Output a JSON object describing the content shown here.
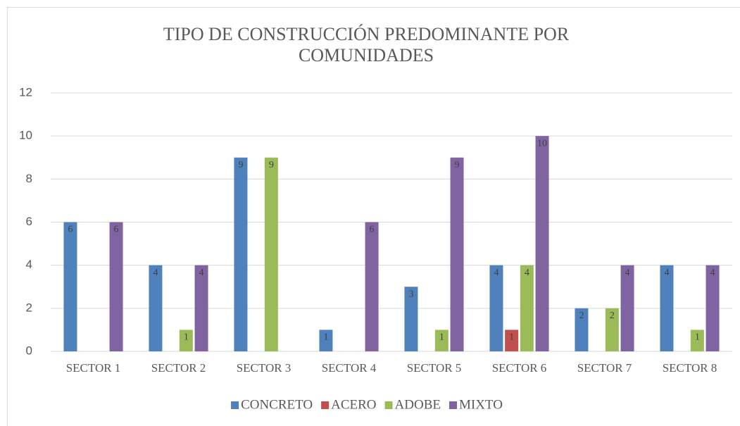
{
  "chart_data": {
    "type": "bar",
    "title": "TIPO DE CONSTRUCCIÓN PREDOMINANTE POR COMUNIDADES",
    "categories": [
      "SECTOR 1",
      "SECTOR 2",
      "SECTOR 3",
      "SECTOR 4",
      "SECTOR 5",
      "SECTOR 6",
      "SECTOR 7",
      "SECTOR 8"
    ],
    "series": [
      {
        "name": "CONCRETO",
        "color": "#4f81bd",
        "values": [
          6,
          4,
          9,
          1,
          3,
          4,
          2,
          4
        ]
      },
      {
        "name": "ACERO",
        "color": "#c0504d",
        "values": [
          0,
          0,
          0,
          0,
          0,
          1,
          0,
          0
        ]
      },
      {
        "name": "ADOBE",
        "color": "#9bbb59",
        "values": [
          0,
          1,
          9,
          0,
          1,
          4,
          2,
          1
        ]
      },
      {
        "name": "MIXTO",
        "color": "#8064a2",
        "values": [
          6,
          4,
          0,
          6,
          9,
          10,
          4,
          4
        ]
      }
    ],
    "ylim": [
      0,
      12
    ],
    "yticks": [
      0,
      2,
      4,
      6,
      8,
      10,
      12
    ],
    "grid": true,
    "legend": "bottom"
  }
}
